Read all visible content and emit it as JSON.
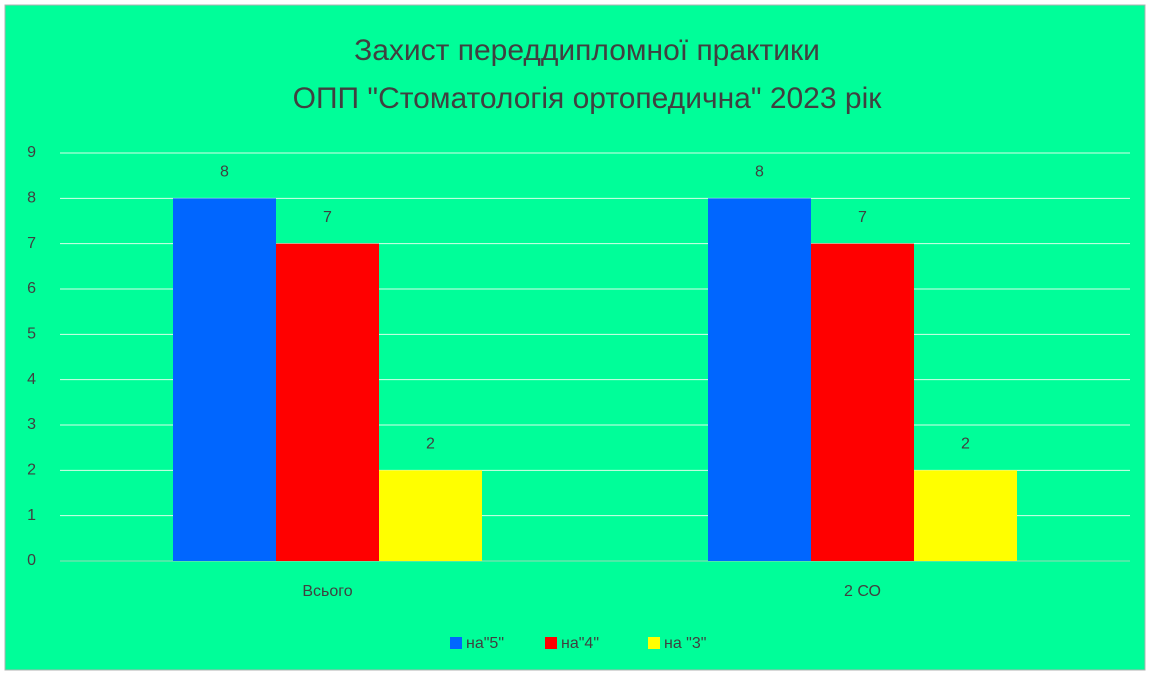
{
  "chart_data": {
    "type": "bar",
    "title": [
      "Захист переддипломної практики",
      "ОПП \"Стоматологія ортопедична\" 2023 рік"
    ],
    "categories": [
      "Всього",
      "2 СО"
    ],
    "series": [
      {
        "name": "на\"5\"",
        "color": "#0066ff",
        "values": [
          8,
          8
        ]
      },
      {
        "name": "на\"4\"",
        "color": "#ff0000",
        "values": [
          7,
          7
        ]
      },
      {
        "name": "на \"3\"",
        "color": "#ffff00",
        "values": [
          2,
          2
        ]
      }
    ],
    "ylim": [
      0,
      9
    ],
    "yticks": [
      0,
      1,
      2,
      3,
      4,
      5,
      6,
      7,
      8,
      9
    ],
    "grid": true,
    "legend": "bottom"
  }
}
